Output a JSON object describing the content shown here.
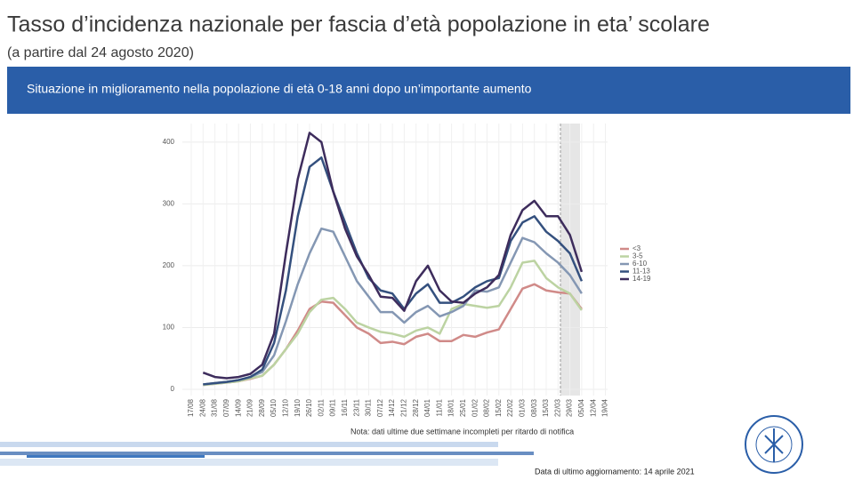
{
  "header": {
    "title": "Tasso d’incidenza nazionale per fascia d’età popolazione in eta’ scolare",
    "subtitle": "(a partire dal 24 agosto 2020)",
    "banner": "Situazione in miglioramento nella popolazione di età 0-18 anni dopo un’importante aumento"
  },
  "chart_data": {
    "type": "line",
    "categories": [
      "17/08",
      "24/08",
      "31/08",
      "07/09",
      "14/09",
      "21/09",
      "28/09",
      "05/10",
      "12/10",
      "19/10",
      "26/10",
      "02/11",
      "09/11",
      "16/11",
      "23/11",
      "30/11",
      "07/12",
      "14/12",
      "21/12",
      "28/12",
      "04/01",
      "11/01",
      "18/01",
      "25/01",
      "01/02",
      "08/02",
      "15/02",
      "22/02",
      "01/03",
      "08/03",
      "15/03",
      "22/03",
      "29/03",
      "05/04",
      "12/04",
      "19/04"
    ],
    "series": [
      {
        "name": "<3",
        "color": "#d08a88",
        "values": [
          null,
          7,
          9,
          11,
          13,
          17,
          22,
          40,
          65,
          95,
          130,
          142,
          140,
          120,
          100,
          90,
          75,
          77,
          73,
          85,
          90,
          78,
          78,
          88,
          85,
          92,
          97,
          130,
          163,
          170,
          160,
          157,
          155,
          130,
          null,
          null
        ]
      },
      {
        "name": "3-5",
        "color": "#bcd3a2",
        "values": [
          null,
          7,
          9,
          11,
          13,
          18,
          22,
          40,
          65,
          90,
          125,
          145,
          148,
          130,
          108,
          100,
          93,
          90,
          85,
          95,
          100,
          90,
          130,
          138,
          135,
          132,
          135,
          165,
          205,
          208,
          180,
          165,
          155,
          128,
          null,
          null
        ]
      },
      {
        "name": "6-10",
        "color": "#8497b3",
        "values": [
          null,
          8,
          10,
          12,
          15,
          20,
          28,
          55,
          110,
          170,
          220,
          260,
          255,
          215,
          175,
          150,
          125,
          125,
          108,
          125,
          135,
          118,
          125,
          135,
          160,
          158,
          165,
          205,
          245,
          238,
          220,
          205,
          185,
          155,
          null,
          null
        ]
      },
      {
        "name": "11-13",
        "color": "#34507e",
        "values": [
          null,
          8,
          10,
          12,
          15,
          20,
          32,
          75,
          160,
          280,
          360,
          375,
          320,
          270,
          220,
          180,
          160,
          155,
          130,
          155,
          170,
          140,
          140,
          150,
          165,
          175,
          180,
          240,
          270,
          280,
          255,
          240,
          220,
          175,
          null,
          null
        ]
      },
      {
        "name": "14-19",
        "color": "#3d2c5c",
        "values": [
          null,
          27,
          20,
          18,
          20,
          25,
          40,
          90,
          220,
          340,
          415,
          400,
          320,
          260,
          215,
          185,
          150,
          148,
          127,
          175,
          200,
          160,
          142,
          140,
          155,
          165,
          185,
          250,
          290,
          305,
          280,
          280,
          250,
          190,
          null,
          null
        ]
      }
    ],
    "ylim": [
      0,
      430
    ],
    "yticks": [
      0,
      100,
      200,
      300,
      400
    ],
    "grid": true,
    "note": "Nota: dati ultime due settimane incompleti per ritardo di notifica"
  },
  "footer": {
    "update": "Data di ultimo aggiornamento: 14 aprile 2021"
  }
}
